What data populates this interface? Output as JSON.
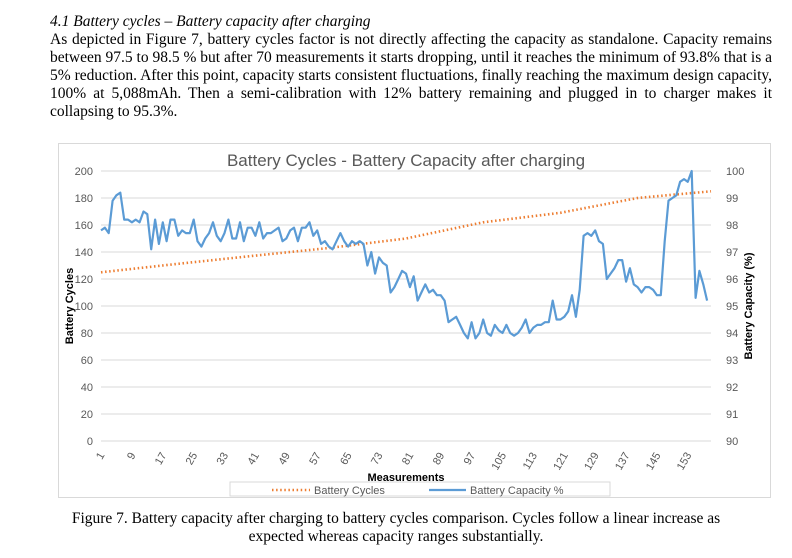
{
  "section": {
    "heading": "4.1 Battery cycles – Battery capacity after charging",
    "paragraph": "As depicted in Figure 7, battery cycles factor is not directly affecting the capacity as standalone. Capacity remains between 97.5 to 98.5 % but after 70 measurements it starts dropping, until it reaches the minimum of 93.8% that is a 5% reduction. After this point, capacity starts consistent fluctuations, finally reaching the maximum design capacity, 100% at 5,088mAh. Then a semi-calibration with 12% battery remaining and plugged in to charger makes it collapsing to 95.3%."
  },
  "figure": {
    "caption_line1": "Figure 7. Battery capacity after charging to battery cycles comparison. Cycles follow a linear increase as",
    "caption_line2": "expected whereas capacity ranges substantially."
  },
  "colors": {
    "cycles": "#ed7d31",
    "capacity": "#5b9bd5",
    "grid": "#d9d9d9",
    "text": "#595959"
  },
  "chart_data": {
    "type": "line",
    "title": "Battery Cycles - Battery Capacity  after charging",
    "xlabel": "Measurements",
    "ylabel_left": "Battery Cycles",
    "ylabel_right": "Battery Capacity (%)",
    "ylim_left": [
      0,
      200
    ],
    "ylim_right": [
      90,
      100
    ],
    "yticks_left": [
      "0",
      "20",
      "40",
      "60",
      "80",
      "100",
      "120",
      "140",
      "160",
      "180",
      "200"
    ],
    "yticks_right": [
      "90",
      "91",
      "92",
      "93",
      "94",
      "95",
      "96",
      "97",
      "98",
      "99",
      "100"
    ],
    "xticks": [
      "1",
      "9",
      "17",
      "25",
      "33",
      "41",
      "49",
      "57",
      "65",
      "73",
      "81",
      "89",
      "97",
      "105",
      "113",
      "121",
      "129",
      "137",
      "145",
      "153"
    ],
    "x_range": [
      1,
      159
    ],
    "grid": true,
    "legend_position": "bottom",
    "series": [
      {
        "name": "Battery Cycles",
        "axis": "left",
        "style": "dotted",
        "points": [
          [
            1,
            125
          ],
          [
            20,
            131
          ],
          [
            40,
            137
          ],
          [
            60,
            143
          ],
          [
            80,
            150
          ],
          [
            100,
            162
          ],
          [
            120,
            169
          ],
          [
            140,
            180
          ],
          [
            159,
            185
          ]
        ]
      },
      {
        "name": "Battery Capacity  %",
        "axis": "right",
        "style": "solid",
        "points": [
          [
            1,
            97.8
          ],
          [
            2,
            97.9
          ],
          [
            3,
            97.7
          ],
          [
            4,
            98.9
          ],
          [
            5,
            99.1
          ],
          [
            6,
            99.2
          ],
          [
            7,
            98.2
          ],
          [
            8,
            98.2
          ],
          [
            9,
            98.1
          ],
          [
            10,
            98.2
          ],
          [
            11,
            98.1
          ],
          [
            12,
            98.5
          ],
          [
            13,
            98.4
          ],
          [
            14,
            97.1
          ],
          [
            15,
            98.2
          ],
          [
            16,
            97.3
          ],
          [
            17,
            98.1
          ],
          [
            18,
            97.4
          ],
          [
            19,
            98.2
          ],
          [
            20,
            98.2
          ],
          [
            21,
            97.6
          ],
          [
            22,
            97.8
          ],
          [
            23,
            97.7
          ],
          [
            24,
            97.7
          ],
          [
            25,
            98.2
          ],
          [
            26,
            97.4
          ],
          [
            27,
            97.2
          ],
          [
            28,
            97.5
          ],
          [
            29,
            97.7
          ],
          [
            30,
            98.1
          ],
          [
            31,
            97.6
          ],
          [
            32,
            97.4
          ],
          [
            33,
            97.7
          ],
          [
            34,
            98.2
          ],
          [
            35,
            97.5
          ],
          [
            36,
            97.5
          ],
          [
            37,
            98.1
          ],
          [
            38,
            97.4
          ],
          [
            39,
            97.9
          ],
          [
            40,
            97.9
          ],
          [
            41,
            97.6
          ],
          [
            42,
            98.1
          ],
          [
            43,
            97.5
          ],
          [
            44,
            97.7
          ],
          [
            45,
            97.7
          ],
          [
            46,
            97.8
          ],
          [
            47,
            97.9
          ],
          [
            48,
            97.4
          ],
          [
            49,
            97.5
          ],
          [
            50,
            97.8
          ],
          [
            51,
            97.9
          ],
          [
            52,
            97.4
          ],
          [
            53,
            97.9
          ],
          [
            54,
            97.9
          ],
          [
            55,
            98.1
          ],
          [
            56,
            97.6
          ],
          [
            57,
            97.8
          ],
          [
            58,
            97.3
          ],
          [
            59,
            97.4
          ],
          [
            60,
            97.2
          ],
          [
            61,
            97.1
          ],
          [
            62,
            97.4
          ],
          [
            63,
            97.7
          ],
          [
            64,
            97.4
          ],
          [
            65,
            97.2
          ],
          [
            66,
            97.4
          ],
          [
            67,
            97.3
          ],
          [
            68,
            97.4
          ],
          [
            69,
            97.3
          ],
          [
            70,
            96.5
          ],
          [
            71,
            97.0
          ],
          [
            72,
            96.2
          ],
          [
            73,
            96.8
          ],
          [
            74,
            96.6
          ],
          [
            75,
            96.5
          ],
          [
            76,
            95.5
          ],
          [
            77,
            95.7
          ],
          [
            78,
            96.0
          ],
          [
            79,
            96.3
          ],
          [
            80,
            96.2
          ],
          [
            81,
            95.7
          ],
          [
            82,
            96.1
          ],
          [
            83,
            95.2
          ],
          [
            84,
            95.5
          ],
          [
            85,
            95.8
          ],
          [
            86,
            95.5
          ],
          [
            87,
            95.6
          ],
          [
            88,
            95.4
          ],
          [
            89,
            95.4
          ],
          [
            90,
            95.2
          ],
          [
            91,
            94.4
          ],
          [
            92,
            94.5
          ],
          [
            93,
            94.6
          ],
          [
            94,
            94.3
          ],
          [
            95,
            94.0
          ],
          [
            96,
            93.8
          ],
          [
            97,
            94.4
          ],
          [
            98,
            93.8
          ],
          [
            99,
            94.0
          ],
          [
            100,
            94.5
          ],
          [
            101,
            94.0
          ],
          [
            102,
            93.9
          ],
          [
            103,
            94.3
          ],
          [
            104,
            94.1
          ],
          [
            105,
            94.0
          ],
          [
            106,
            94.3
          ],
          [
            107,
            94.0
          ],
          [
            108,
            93.9
          ],
          [
            109,
            94.0
          ],
          [
            110,
            94.2
          ],
          [
            111,
            94.5
          ],
          [
            112,
            94.0
          ],
          [
            113,
            94.2
          ],
          [
            114,
            94.3
          ],
          [
            115,
            94.3
          ],
          [
            116,
            94.4
          ],
          [
            117,
            94.4
          ],
          [
            118,
            95.2
          ],
          [
            119,
            94.5
          ],
          [
            120,
            94.5
          ],
          [
            121,
            94.6
          ],
          [
            122,
            94.8
          ],
          [
            123,
            95.4
          ],
          [
            124,
            94.6
          ],
          [
            125,
            95.6
          ],
          [
            126,
            97.6
          ],
          [
            127,
            97.7
          ],
          [
            128,
            97.6
          ],
          [
            129,
            97.8
          ],
          [
            130,
            97.4
          ],
          [
            131,
            97.3
          ],
          [
            132,
            96.0
          ],
          [
            133,
            96.2
          ],
          [
            134,
            96.4
          ],
          [
            135,
            96.7
          ],
          [
            136,
            96.7
          ],
          [
            137,
            95.9
          ],
          [
            138,
            96.4
          ],
          [
            139,
            95.8
          ],
          [
            140,
            95.7
          ],
          [
            141,
            95.5
          ],
          [
            142,
            95.7
          ],
          [
            143,
            95.7
          ],
          [
            144,
            95.6
          ],
          [
            145,
            95.4
          ],
          [
            146,
            95.4
          ],
          [
            147,
            97.4
          ],
          [
            148,
            98.9
          ],
          [
            149,
            99.0
          ],
          [
            150,
            99.1
          ],
          [
            151,
            99.6
          ],
          [
            152,
            99.7
          ],
          [
            153,
            99.6
          ],
          [
            154,
            100.0
          ],
          [
            155,
            95.3
          ],
          [
            156,
            96.3
          ],
          [
            157,
            95.8
          ],
          [
            158,
            95.2
          ]
        ]
      }
    ]
  }
}
